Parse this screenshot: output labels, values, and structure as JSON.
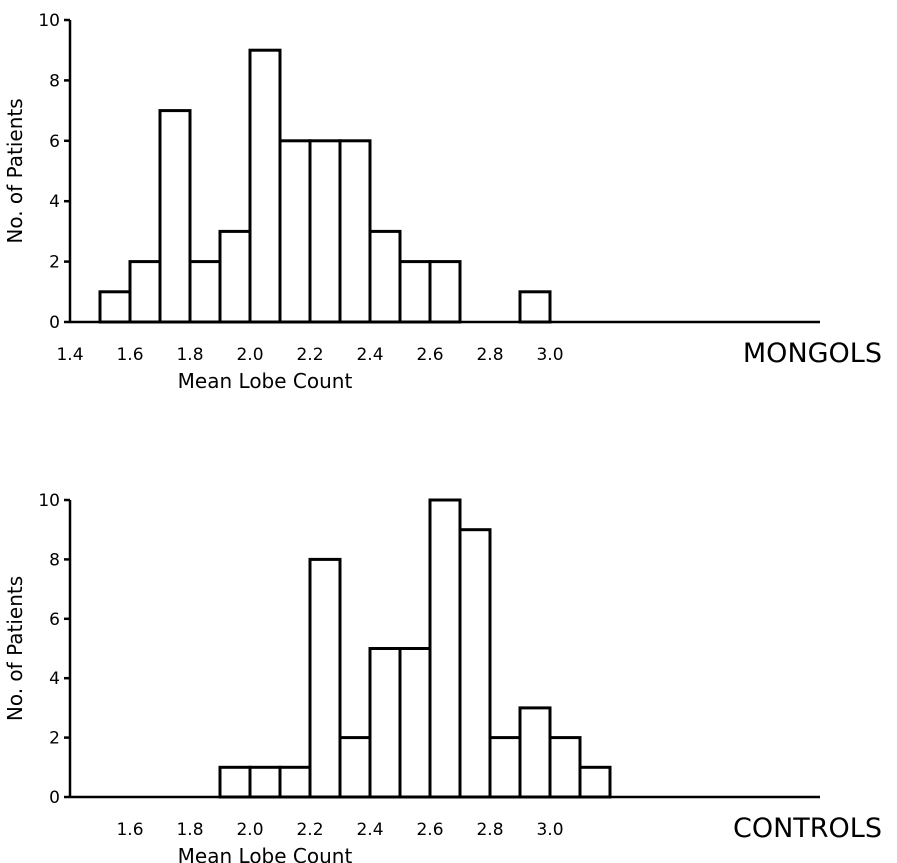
{
  "chart_data": [
    {
      "type": "bar",
      "group_label": "MONGOLS",
      "xlabel": "Mean Lobe Count",
      "ylabel": "No. of Patients",
      "ylim": [
        0,
        10
      ],
      "xlim": [
        1.4,
        3.1
      ],
      "y_ticks": [
        "0",
        "2",
        "4",
        "6",
        "8",
        "10"
      ],
      "x_ticks": [
        "1.4",
        "1.6",
        "1.8",
        "2.0",
        "2.2",
        "2.4",
        "2.6",
        "2.8",
        "3.0"
      ],
      "bins": [
        {
          "x0": 1.5,
          "x1": 1.6,
          "value": 1
        },
        {
          "x0": 1.6,
          "x1": 1.7,
          "value": 2
        },
        {
          "x0": 1.7,
          "x1": 1.8,
          "value": 7
        },
        {
          "x0": 1.8,
          "x1": 1.9,
          "value": 2
        },
        {
          "x0": 1.9,
          "x1": 2.0,
          "value": 3
        },
        {
          "x0": 2.0,
          "x1": 2.1,
          "value": 9
        },
        {
          "x0": 2.1,
          "x1": 2.2,
          "value": 6
        },
        {
          "x0": 2.2,
          "x1": 2.3,
          "value": 6
        },
        {
          "x0": 2.3,
          "x1": 2.4,
          "value": 6
        },
        {
          "x0": 2.4,
          "x1": 2.5,
          "value": 3
        },
        {
          "x0": 2.5,
          "x1": 2.6,
          "value": 2
        },
        {
          "x0": 2.6,
          "x1": 2.7,
          "value": 2
        },
        {
          "x0": 2.9,
          "x1": 3.0,
          "value": 1
        }
      ]
    },
    {
      "type": "bar",
      "group_label": "CONTROLS",
      "xlabel": "Mean Lobe Count",
      "ylabel": "No. of Patients",
      "ylim": [
        0,
        10
      ],
      "xlim": [
        1.4,
        3.1
      ],
      "y_ticks": [
        "0",
        "2",
        "4",
        "6",
        "8",
        "10"
      ],
      "x_ticks": [
        "1.6",
        "1.8",
        "2.0",
        "2.2",
        "2.4",
        "2.6",
        "2.8",
        "3.0"
      ],
      "bins": [
        {
          "x0": 1.9,
          "x1": 2.0,
          "value": 1
        },
        {
          "x0": 2.0,
          "x1": 2.1,
          "value": 1
        },
        {
          "x0": 2.1,
          "x1": 2.2,
          "value": 1
        },
        {
          "x0": 2.2,
          "x1": 2.3,
          "value": 8
        },
        {
          "x0": 2.3,
          "x1": 2.4,
          "value": 2
        },
        {
          "x0": 2.4,
          "x1": 2.5,
          "value": 5
        },
        {
          "x0": 2.5,
          "x1": 2.6,
          "value": 5
        },
        {
          "x0": 2.6,
          "x1": 2.7,
          "value": 10
        },
        {
          "x0": 2.7,
          "x1": 2.8,
          "value": 9
        },
        {
          "x0": 2.8,
          "x1": 2.9,
          "value": 2
        },
        {
          "x0": 2.9,
          "x1": 3.0,
          "value": 3
        },
        {
          "x0": 3.0,
          "x1": 3.1,
          "value": 2
        },
        {
          "x0": 3.1,
          "x1": 3.2,
          "value": 1
        }
      ]
    }
  ]
}
